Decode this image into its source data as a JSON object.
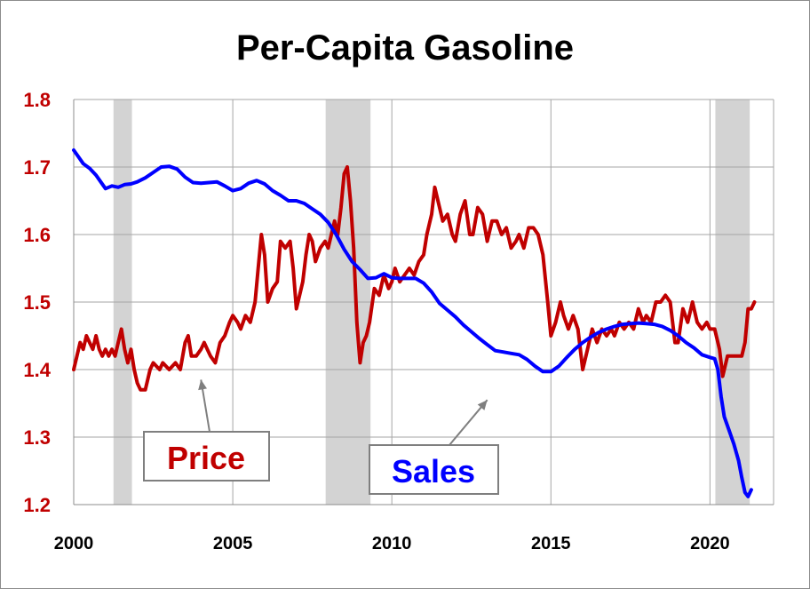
{
  "chart_data": {
    "type": "line",
    "title": "Per-Capita Gasoline",
    "xlabel": "",
    "ylabel": "",
    "xlim": [
      2000,
      2022
    ],
    "ylim": [
      1.2,
      1.8
    ],
    "x_ticks": [
      "2000",
      "2005",
      "2010",
      "2015",
      "2020"
    ],
    "y_ticks": [
      "1.2",
      "1.3",
      "1.4",
      "1.5",
      "1.6",
      "1.7",
      "1.8"
    ],
    "grid": true,
    "recessions": [
      [
        2001.25,
        2001.83
      ],
      [
        2007.92,
        2009.33
      ],
      [
        2020.17,
        2021.25
      ]
    ],
    "annotations": [
      {
        "text": "Price",
        "color": "#c00000",
        "arrow_to": [
          2004.0,
          1.385
        ]
      },
      {
        "text": "Sales",
        "color": "#0000ff",
        "arrow_to": [
          2013.0,
          1.355
        ]
      }
    ],
    "series": [
      {
        "name": "Price",
        "color": "#c00000",
        "points": [
          [
            2000.0,
            1.4
          ],
          [
            2000.1,
            1.42
          ],
          [
            2000.2,
            1.44
          ],
          [
            2000.3,
            1.43
          ],
          [
            2000.4,
            1.45
          ],
          [
            2000.5,
            1.44
          ],
          [
            2000.6,
            1.43
          ],
          [
            2000.7,
            1.45
          ],
          [
            2000.8,
            1.43
          ],
          [
            2000.9,
            1.42
          ],
          [
            2001.0,
            1.43
          ],
          [
            2001.1,
            1.42
          ],
          [
            2001.2,
            1.43
          ],
          [
            2001.3,
            1.42
          ],
          [
            2001.4,
            1.44
          ],
          [
            2001.5,
            1.46
          ],
          [
            2001.6,
            1.43
          ],
          [
            2001.7,
            1.41
          ],
          [
            2001.8,
            1.43
          ],
          [
            2001.9,
            1.4
          ],
          [
            2002.0,
            1.38
          ],
          [
            2002.1,
            1.37
          ],
          [
            2002.25,
            1.37
          ],
          [
            2002.4,
            1.4
          ],
          [
            2002.5,
            1.41
          ],
          [
            2002.7,
            1.4
          ],
          [
            2002.8,
            1.41
          ],
          [
            2003.0,
            1.4
          ],
          [
            2003.2,
            1.41
          ],
          [
            2003.35,
            1.4
          ],
          [
            2003.5,
            1.44
          ],
          [
            2003.6,
            1.45
          ],
          [
            2003.7,
            1.42
          ],
          [
            2003.85,
            1.42
          ],
          [
            2004.0,
            1.43
          ],
          [
            2004.1,
            1.44
          ],
          [
            2004.2,
            1.43
          ],
          [
            2004.3,
            1.42
          ],
          [
            2004.45,
            1.41
          ],
          [
            2004.6,
            1.44
          ],
          [
            2004.75,
            1.45
          ],
          [
            2004.9,
            1.47
          ],
          [
            2005.0,
            1.48
          ],
          [
            2005.15,
            1.47
          ],
          [
            2005.25,
            1.46
          ],
          [
            2005.4,
            1.48
          ],
          [
            2005.55,
            1.47
          ],
          [
            2005.7,
            1.5
          ],
          [
            2005.8,
            1.55
          ],
          [
            2005.9,
            1.6
          ],
          [
            2006.0,
            1.57
          ],
          [
            2006.1,
            1.5
          ],
          [
            2006.25,
            1.52
          ],
          [
            2006.4,
            1.53
          ],
          [
            2006.5,
            1.59
          ],
          [
            2006.65,
            1.58
          ],
          [
            2006.8,
            1.59
          ],
          [
            2006.9,
            1.55
          ],
          [
            2007.0,
            1.49
          ],
          [
            2007.1,
            1.51
          ],
          [
            2007.2,
            1.53
          ],
          [
            2007.3,
            1.57
          ],
          [
            2007.4,
            1.6
          ],
          [
            2007.5,
            1.59
          ],
          [
            2007.6,
            1.56
          ],
          [
            2007.75,
            1.58
          ],
          [
            2007.9,
            1.59
          ],
          [
            2008.0,
            1.58
          ],
          [
            2008.1,
            1.6
          ],
          [
            2008.2,
            1.62
          ],
          [
            2008.3,
            1.6
          ],
          [
            2008.4,
            1.64
          ],
          [
            2008.5,
            1.69
          ],
          [
            2008.6,
            1.7
          ],
          [
            2008.7,
            1.65
          ],
          [
            2008.8,
            1.58
          ],
          [
            2008.9,
            1.47
          ],
          [
            2009.0,
            1.41
          ],
          [
            2009.1,
            1.44
          ],
          [
            2009.2,
            1.45
          ],
          [
            2009.3,
            1.47
          ],
          [
            2009.45,
            1.52
          ],
          [
            2009.6,
            1.51
          ],
          [
            2009.75,
            1.54
          ],
          [
            2009.9,
            1.52
          ],
          [
            2010.0,
            1.53
          ],
          [
            2010.1,
            1.55
          ],
          [
            2010.25,
            1.53
          ],
          [
            2010.4,
            1.54
          ],
          [
            2010.55,
            1.55
          ],
          [
            2010.7,
            1.54
          ],
          [
            2010.85,
            1.56
          ],
          [
            2011.0,
            1.57
          ],
          [
            2011.1,
            1.6
          ],
          [
            2011.25,
            1.63
          ],
          [
            2011.35,
            1.67
          ],
          [
            2011.5,
            1.64
          ],
          [
            2011.6,
            1.62
          ],
          [
            2011.75,
            1.63
          ],
          [
            2011.9,
            1.6
          ],
          [
            2012.0,
            1.59
          ],
          [
            2012.15,
            1.63
          ],
          [
            2012.3,
            1.65
          ],
          [
            2012.45,
            1.6
          ],
          [
            2012.55,
            1.6
          ],
          [
            2012.7,
            1.64
          ],
          [
            2012.85,
            1.63
          ],
          [
            2013.0,
            1.59
          ],
          [
            2013.15,
            1.62
          ],
          [
            2013.3,
            1.62
          ],
          [
            2013.45,
            1.6
          ],
          [
            2013.6,
            1.61
          ],
          [
            2013.75,
            1.58
          ],
          [
            2013.9,
            1.59
          ],
          [
            2014.0,
            1.6
          ],
          [
            2014.15,
            1.58
          ],
          [
            2014.3,
            1.61
          ],
          [
            2014.45,
            1.61
          ],
          [
            2014.6,
            1.6
          ],
          [
            2014.75,
            1.57
          ],
          [
            2014.9,
            1.5
          ],
          [
            2015.0,
            1.45
          ],
          [
            2015.15,
            1.47
          ],
          [
            2015.3,
            1.5
          ],
          [
            2015.4,
            1.48
          ],
          [
            2015.55,
            1.46
          ],
          [
            2015.7,
            1.48
          ],
          [
            2015.85,
            1.46
          ],
          [
            2016.0,
            1.4
          ],
          [
            2016.15,
            1.43
          ],
          [
            2016.3,
            1.46
          ],
          [
            2016.45,
            1.44
          ],
          [
            2016.6,
            1.46
          ],
          [
            2016.75,
            1.45
          ],
          [
            2016.9,
            1.46
          ],
          [
            2017.0,
            1.45
          ],
          [
            2017.15,
            1.47
          ],
          [
            2017.3,
            1.46
          ],
          [
            2017.45,
            1.47
          ],
          [
            2017.6,
            1.46
          ],
          [
            2017.75,
            1.49
          ],
          [
            2017.9,
            1.47
          ],
          [
            2018.0,
            1.48
          ],
          [
            2018.15,
            1.47
          ],
          [
            2018.3,
            1.5
          ],
          [
            2018.45,
            1.5
          ],
          [
            2018.6,
            1.51
          ],
          [
            2018.75,
            1.5
          ],
          [
            2018.9,
            1.44
          ],
          [
            2019.0,
            1.44
          ],
          [
            2019.15,
            1.49
          ],
          [
            2019.3,
            1.47
          ],
          [
            2019.45,
            1.5
          ],
          [
            2019.6,
            1.47
          ],
          [
            2019.75,
            1.46
          ],
          [
            2019.9,
            1.47
          ],
          [
            2020.0,
            1.46
          ],
          [
            2020.15,
            1.46
          ],
          [
            2020.3,
            1.43
          ],
          [
            2020.4,
            1.39
          ],
          [
            2020.55,
            1.42
          ],
          [
            2020.7,
            1.42
          ],
          [
            2020.85,
            1.42
          ],
          [
            2021.0,
            1.42
          ],
          [
            2021.1,
            1.44
          ],
          [
            2021.2,
            1.49
          ],
          [
            2021.3,
            1.49
          ],
          [
            2021.4,
            1.5
          ]
        ]
      },
      {
        "name": "Sales",
        "color": "#0000ff",
        "points": [
          [
            2000.0,
            1.725
          ],
          [
            2000.15,
            1.715
          ],
          [
            2000.3,
            1.705
          ],
          [
            2000.5,
            1.698
          ],
          [
            2000.7,
            1.688
          ],
          [
            2000.85,
            1.678
          ],
          [
            2001.0,
            1.668
          ],
          [
            2001.2,
            1.672
          ],
          [
            2001.4,
            1.67
          ],
          [
            2001.6,
            1.674
          ],
          [
            2001.8,
            1.675
          ],
          [
            2002.0,
            1.678
          ],
          [
            2002.25,
            1.684
          ],
          [
            2002.5,
            1.692
          ],
          [
            2002.75,
            1.7
          ],
          [
            2003.0,
            1.701
          ],
          [
            2003.25,
            1.697
          ],
          [
            2003.5,
            1.685
          ],
          [
            2003.75,
            1.677
          ],
          [
            2004.0,
            1.676
          ],
          [
            2004.25,
            1.677
          ],
          [
            2004.5,
            1.678
          ],
          [
            2004.75,
            1.672
          ],
          [
            2005.0,
            1.665
          ],
          [
            2005.25,
            1.668
          ],
          [
            2005.5,
            1.676
          ],
          [
            2005.75,
            1.68
          ],
          [
            2006.0,
            1.675
          ],
          [
            2006.25,
            1.665
          ],
          [
            2006.5,
            1.658
          ],
          [
            2006.75,
            1.65
          ],
          [
            2007.0,
            1.65
          ],
          [
            2007.25,
            1.646
          ],
          [
            2007.5,
            1.638
          ],
          [
            2007.75,
            1.63
          ],
          [
            2008.0,
            1.618
          ],
          [
            2008.25,
            1.6
          ],
          [
            2008.5,
            1.578
          ],
          [
            2008.75,
            1.56
          ],
          [
            2009.0,
            1.548
          ],
          [
            2009.25,
            1.535
          ],
          [
            2009.5,
            1.536
          ],
          [
            2009.75,
            1.542
          ],
          [
            2010.0,
            1.536
          ],
          [
            2010.25,
            1.535
          ],
          [
            2010.5,
            1.535
          ],
          [
            2010.75,
            1.535
          ],
          [
            2011.0,
            1.528
          ],
          [
            2011.25,
            1.515
          ],
          [
            2011.5,
            1.498
          ],
          [
            2011.75,
            1.488
          ],
          [
            2012.0,
            1.478
          ],
          [
            2012.25,
            1.466
          ],
          [
            2012.5,
            1.456
          ],
          [
            2012.75,
            1.446
          ],
          [
            2013.0,
            1.437
          ],
          [
            2013.25,
            1.428
          ],
          [
            2013.5,
            1.426
          ],
          [
            2013.75,
            1.424
          ],
          [
            2014.0,
            1.422
          ],
          [
            2014.25,
            1.415
          ],
          [
            2014.5,
            1.405
          ],
          [
            2014.75,
            1.397
          ],
          [
            2015.0,
            1.397
          ],
          [
            2015.25,
            1.405
          ],
          [
            2015.5,
            1.418
          ],
          [
            2015.75,
            1.43
          ],
          [
            2016.0,
            1.44
          ],
          [
            2016.25,
            1.448
          ],
          [
            2016.5,
            1.455
          ],
          [
            2016.75,
            1.46
          ],
          [
            2017.0,
            1.464
          ],
          [
            2017.25,
            1.467
          ],
          [
            2017.5,
            1.468
          ],
          [
            2017.75,
            1.469
          ],
          [
            2018.0,
            1.468
          ],
          [
            2018.25,
            1.467
          ],
          [
            2018.5,
            1.464
          ],
          [
            2018.75,
            1.458
          ],
          [
            2019.0,
            1.45
          ],
          [
            2019.25,
            1.44
          ],
          [
            2019.5,
            1.432
          ],
          [
            2019.75,
            1.422
          ],
          [
            2020.0,
            1.418
          ],
          [
            2020.15,
            1.416
          ],
          [
            2020.25,
            1.4
          ],
          [
            2020.35,
            1.36
          ],
          [
            2020.45,
            1.33
          ],
          [
            2020.6,
            1.31
          ],
          [
            2020.75,
            1.29
          ],
          [
            2020.9,
            1.265
          ],
          [
            2021.0,
            1.24
          ],
          [
            2021.1,
            1.218
          ],
          [
            2021.2,
            1.212
          ],
          [
            2021.3,
            1.222
          ]
        ]
      }
    ]
  }
}
